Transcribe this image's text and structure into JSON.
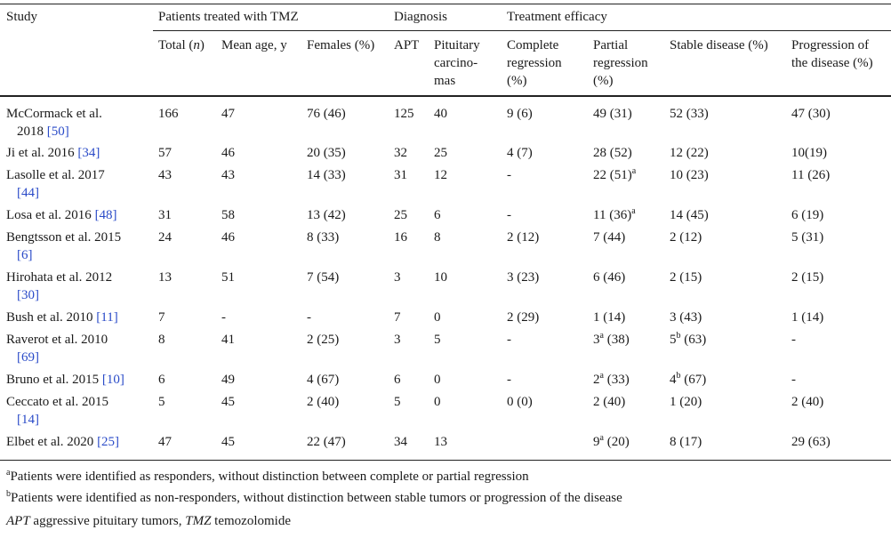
{
  "headers": {
    "study": "Study",
    "group_patients": "Patients treated with TMZ",
    "group_diagnosis": "Diagnosis",
    "group_efficacy": "Treatment efficacy",
    "total_a": "Total (",
    "total_n": "n",
    "total_b": ")",
    "mean_age": "Mean age, y",
    "females": "Females (%)",
    "apt": "APT",
    "pit_1": "Pituitary",
    "pit_2": "carcino-",
    "pit_3": "mas",
    "cr_1": "Complete",
    "cr_2": "regression",
    "cr_3": "(%)",
    "pr_1": "Partial",
    "pr_2": "regression",
    "pr_3": "(%)",
    "sd": "Stable disease (%)",
    "pd_1": "Progression of",
    "pd_2": "the disease (%)"
  },
  "rows": [
    {
      "study_1": "McCormack et al.",
      "study_2": "2018 ",
      "ref": "[50]",
      "total": "166",
      "age": "47",
      "females": "76 (46)",
      "apt": "125",
      "pit": "40",
      "cr": "9 (6)",
      "pr": "49 (31)",
      "pr_sup": "",
      "pr_tail": "",
      "sd": "52 (33)",
      "sd_sup": "",
      "sd_tail": "",
      "pd": "47 (30)"
    },
    {
      "study_1": "Ji et al. 2016 ",
      "study_2": "",
      "ref": "[34]",
      "total": "57",
      "age": "46",
      "females": "20 (35)",
      "apt": "32",
      "pit": "25",
      "cr": "4 (7)",
      "pr": "28 (52)",
      "pr_sup": "",
      "pr_tail": "",
      "sd": "12 (22)",
      "sd_sup": "",
      "sd_tail": "",
      "pd": "10(19)"
    },
    {
      "study_1": "Lasolle et al. 2017",
      "study_2": "",
      "ref": "[44]",
      "total": "43",
      "age": "43",
      "females": "14 (33)",
      "apt": "31",
      "pit": "12",
      "cr": "-",
      "pr": "22 (51)",
      "pr_sup": "a",
      "pr_tail": "",
      "sd": "10 (23)",
      "sd_sup": "",
      "sd_tail": "",
      "pd": "11 (26)"
    },
    {
      "study_1": "Losa et al. 2016 ",
      "study_2": "",
      "ref": "[48]",
      "total": "31",
      "age": "58",
      "females": "13 (42)",
      "apt": "25",
      "pit": "6",
      "cr": "-",
      "pr": "11 (36)",
      "pr_sup": "a",
      "pr_tail": "",
      "sd": "14 (45)",
      "sd_sup": "",
      "sd_tail": "",
      "pd": "6 (19)"
    },
    {
      "study_1": "Bengtsson et al. 2015",
      "study_2": "",
      "ref": "[6]",
      "total": "24",
      "age": "46",
      "females": "8 (33)",
      "apt": "16",
      "pit": "8",
      "cr": "2 (12)",
      "pr": "7 (44)",
      "pr_sup": "",
      "pr_tail": "",
      "sd": "2 (12)",
      "sd_sup": "",
      "sd_tail": "",
      "pd": "5 (31)"
    },
    {
      "study_1": "Hirohata et al. 2012",
      "study_2": "",
      "ref": "[30]",
      "total": "13",
      "age": "51",
      "females": "7 (54)",
      "apt": "3",
      "pit": "10",
      "cr": "3 (23)",
      "pr": "6 (46)",
      "pr_sup": "",
      "pr_tail": "",
      "sd": "2 (15)",
      "sd_sup": "",
      "sd_tail": "",
      "pd": "2 (15)"
    },
    {
      "study_1": "Bush et al. 2010 ",
      "study_2": "",
      "ref": "[11]",
      "total": "7",
      "age": "-",
      "females": "-",
      "apt": "7",
      "pit": "0",
      "cr": "2 (29)",
      "pr": "1 (14)",
      "pr_sup": "",
      "pr_tail": "",
      "sd": "3 (43)",
      "sd_sup": "",
      "sd_tail": "",
      "pd": "1 (14)"
    },
    {
      "study_1": "Raverot et al. 2010",
      "study_2": "",
      "ref": "[69]",
      "total": "8",
      "age": "41",
      "females": "2 (25)",
      "apt": "3",
      "pit": "5",
      "cr": "-",
      "pr": "3",
      "pr_sup": "a",
      "pr_tail": " (38)",
      "sd": "5",
      "sd_sup": "b",
      "sd_tail": " (63)",
      "pd": "-"
    },
    {
      "study_1": "Bruno et al. 2015 ",
      "study_2": "",
      "ref": "[10]",
      "total": "6",
      "age": "49",
      "females": "4 (67)",
      "apt": "6",
      "pit": "0",
      "cr": "-",
      "pr": "2",
      "pr_sup": "a",
      "pr_tail": " (33)",
      "sd": "4",
      "sd_sup": "b",
      "sd_tail": " (67)",
      "pd": "-"
    },
    {
      "study_1": "Ceccato et al. 2015",
      "study_2": "",
      "ref": "[14]",
      "total": "5",
      "age": "45",
      "females": "2 (40)",
      "apt": "5",
      "pit": "0",
      "cr": "0 (0)",
      "pr": "2 (40)",
      "pr_sup": "",
      "pr_tail": "",
      "sd": "1 (20)",
      "sd_sup": "",
      "sd_tail": "",
      "pd": "2 (40)"
    },
    {
      "study_1": "Elbet et al. 2020 ",
      "study_2": "",
      "ref": "[25]",
      "total": "47",
      "age": "45",
      "females": "22 (47)",
      "apt": "34",
      "pit": "13",
      "cr": "",
      "pr": "9",
      "pr_sup": "a",
      "pr_tail": " (20)",
      "sd": "8 (17)",
      "sd_sup": "",
      "sd_tail": "",
      "pd": "29 (63)"
    }
  ],
  "footnotes": {
    "a_mark": "a",
    "a_text": "Patients were identified as responders, without distinction between complete or partial regression",
    "b_mark": "b",
    "b_text": "Patients were identified as non-responders, without distinction between stable tumors or progression of the disease",
    "abbr_apt": "APT",
    "abbr_apt_text": " aggressive pituitary tumors, ",
    "abbr_tmz": "TMZ",
    "abbr_tmz_text": " temozolomide"
  }
}
